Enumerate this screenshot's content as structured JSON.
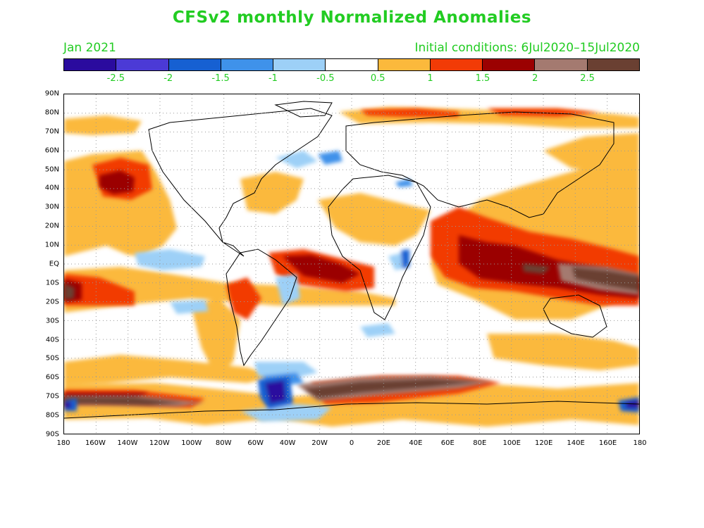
{
  "title": "CFSv2 monthly Normalized Anomalies",
  "valid_month": "Jan 2021",
  "initial_conditions": "Initial conditions: 6Jul2020–15Jul2020",
  "colorbar": {
    "colors": [
      "#2a0b9e",
      "#4b3ad6",
      "#1660d2",
      "#3f92ea",
      "#9dd0f7",
      "#ffffff",
      "#fbb93c",
      "#f23b06",
      "#9b0101",
      "#a47a70",
      "#6a4032"
    ],
    "labels": [
      "-2.5",
      "-2",
      "-1.5",
      "-1",
      "-0.5",
      "0.5",
      "1",
      "1.5",
      "2",
      "2.5"
    ]
  },
  "lat_labels": [
    "90N",
    "80N",
    "70N",
    "60N",
    "50N",
    "40N",
    "30N",
    "20N",
    "10N",
    "EQ",
    "10S",
    "20S",
    "30S",
    "40S",
    "50S",
    "60S",
    "70S",
    "80S",
    "90S"
  ],
  "lon_labels": [
    "180",
    "160W",
    "140W",
    "120W",
    "100W",
    "80W",
    "60W",
    "40W",
    "20W",
    "0",
    "20E",
    "40E",
    "60E",
    "80E",
    "100E",
    "120E",
    "140E",
    "160E",
    "180"
  ]
}
